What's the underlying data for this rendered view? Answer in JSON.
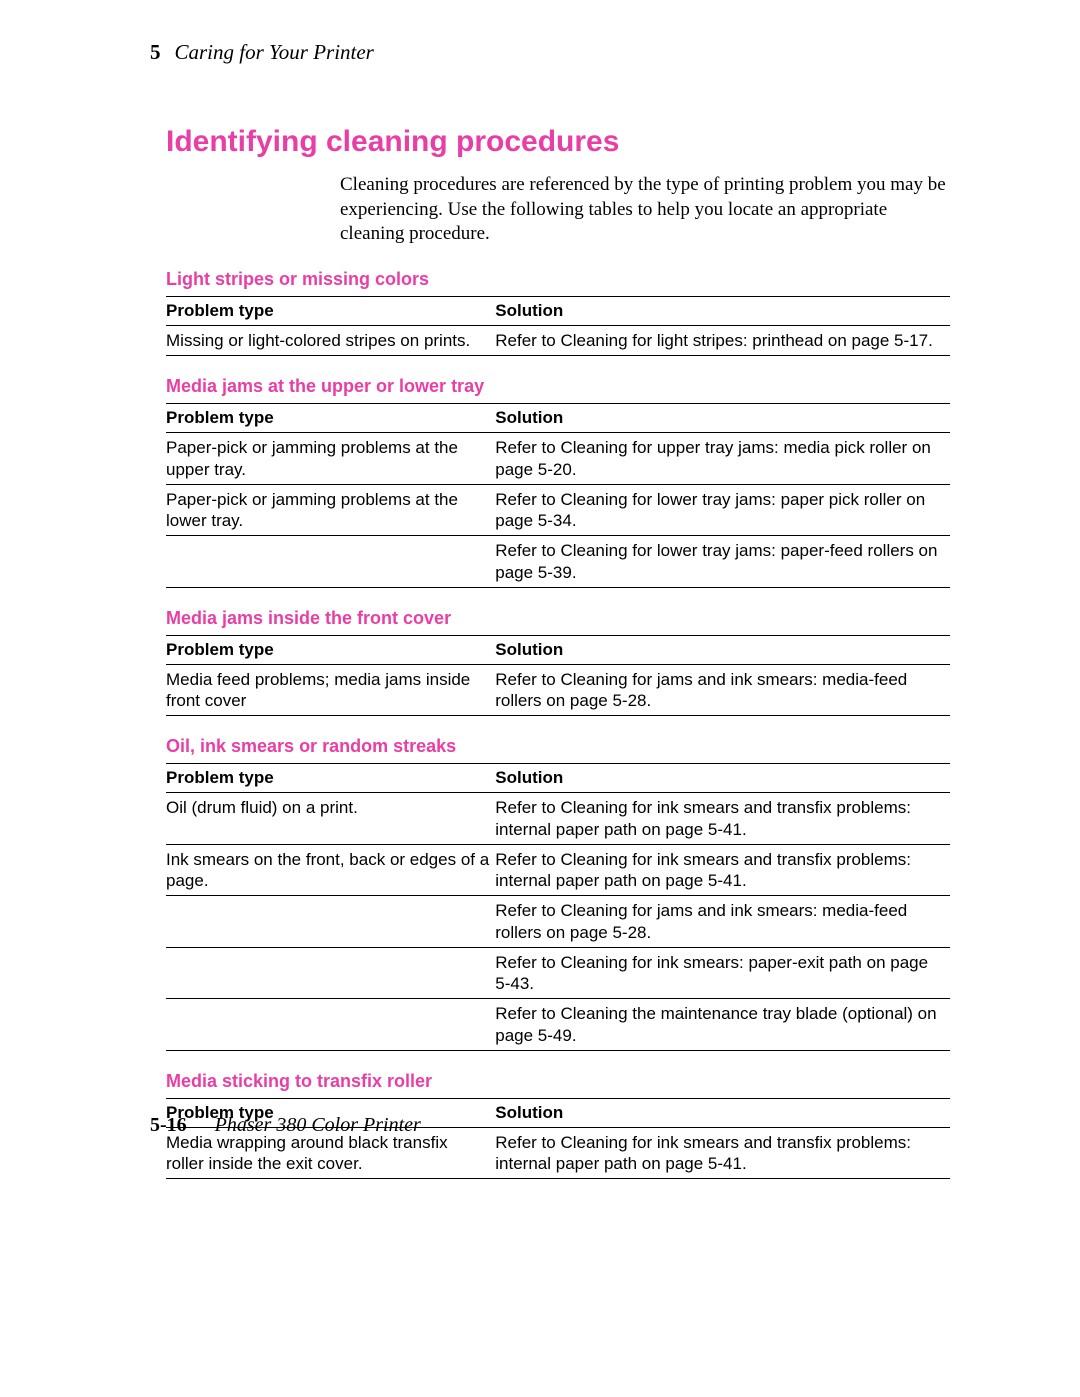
{
  "header": {
    "chapter_number": "5",
    "chapter_title": "Caring for Your Printer"
  },
  "heading": "Identifying cleaning procedures",
  "intro": "Cleaning procedures are referenced by the type of printing problem you may be experiencing.  Use the following tables to help you locate an appropriate cleaning procedure.",
  "accent_color": "#e83ea5",
  "sections": [
    {
      "title": "Light stripes or missing colors",
      "col_problem": "Problem type",
      "col_solution": "Solution",
      "rows": [
        {
          "problem": "Missing or light-colored stripes on prints.",
          "solution": "Refer to  Cleaning for light stripes: printhead  on page 5-17."
        }
      ]
    },
    {
      "title": "Media jams at the upper or lower tray",
      "col_problem": "Problem type",
      "col_solution": "Solution",
      "rows": [
        {
          "problem": "Paper-pick or jamming problems at the upper tray.",
          "solution": "Refer to  Cleaning for upper tray jams: media pick roller on page 5-20."
        },
        {
          "problem": "Paper-pick or jamming problems at the lower tray.",
          "solution": "Refer to  Cleaning for lower tray jams: paper pick roller  on page 5-34."
        },
        {
          "problem": "",
          "solution": "Refer to  Cleaning for lower tray jams: paper-feed rollers on page 5-39."
        }
      ]
    },
    {
      "title": "Media jams inside the front cover",
      "col_problem": "Problem type",
      "col_solution": "Solution",
      "rows": [
        {
          "problem": "Media feed problems; media jams inside front cover",
          "solution": "Refer to  Cleaning for jams and ink smears: media-feed rollers  on page 5-28."
        }
      ]
    },
    {
      "title": "Oil, ink smears or random streaks",
      "col_problem": "Problem type",
      "col_solution": "Solution",
      "rows": [
        {
          "problem": "Oil (drum ﬂuid) on a print.",
          "solution": "Refer to  Cleaning for ink smears and transﬁx problems: internal paper path  on page 5-41."
        },
        {
          "problem": "Ink smears on the front, back or edges of a page.",
          "solution": "Refer to  Cleaning for ink smears and transﬁx problems: internal paper path  on page 5-41."
        },
        {
          "problem": "",
          "solution": "Refer to  Cleaning for jams and ink smears: media-feed rollers  on page 5-28."
        },
        {
          "problem": "",
          "solution": "Refer to  Cleaning for ink smears: paper-exit path  on page 5-43."
        },
        {
          "problem": "",
          "solution": "Refer to  Cleaning the maintenance tray blade (optional) on page 5-49."
        }
      ]
    },
    {
      "title": "Media sticking to transfix roller",
      "col_problem": "Problem type",
      "col_solution": "Solution",
      "rows": [
        {
          "problem": "Media wrapping around black transﬁx roller inside the exit cover.",
          "solution": "Refer to  Cleaning for ink smears and transﬁx problems: internal paper path  on page 5-41."
        }
      ]
    }
  ],
  "footer": {
    "page_number": "5-16",
    "book_title": "Phaser 380 Color Printer"
  }
}
